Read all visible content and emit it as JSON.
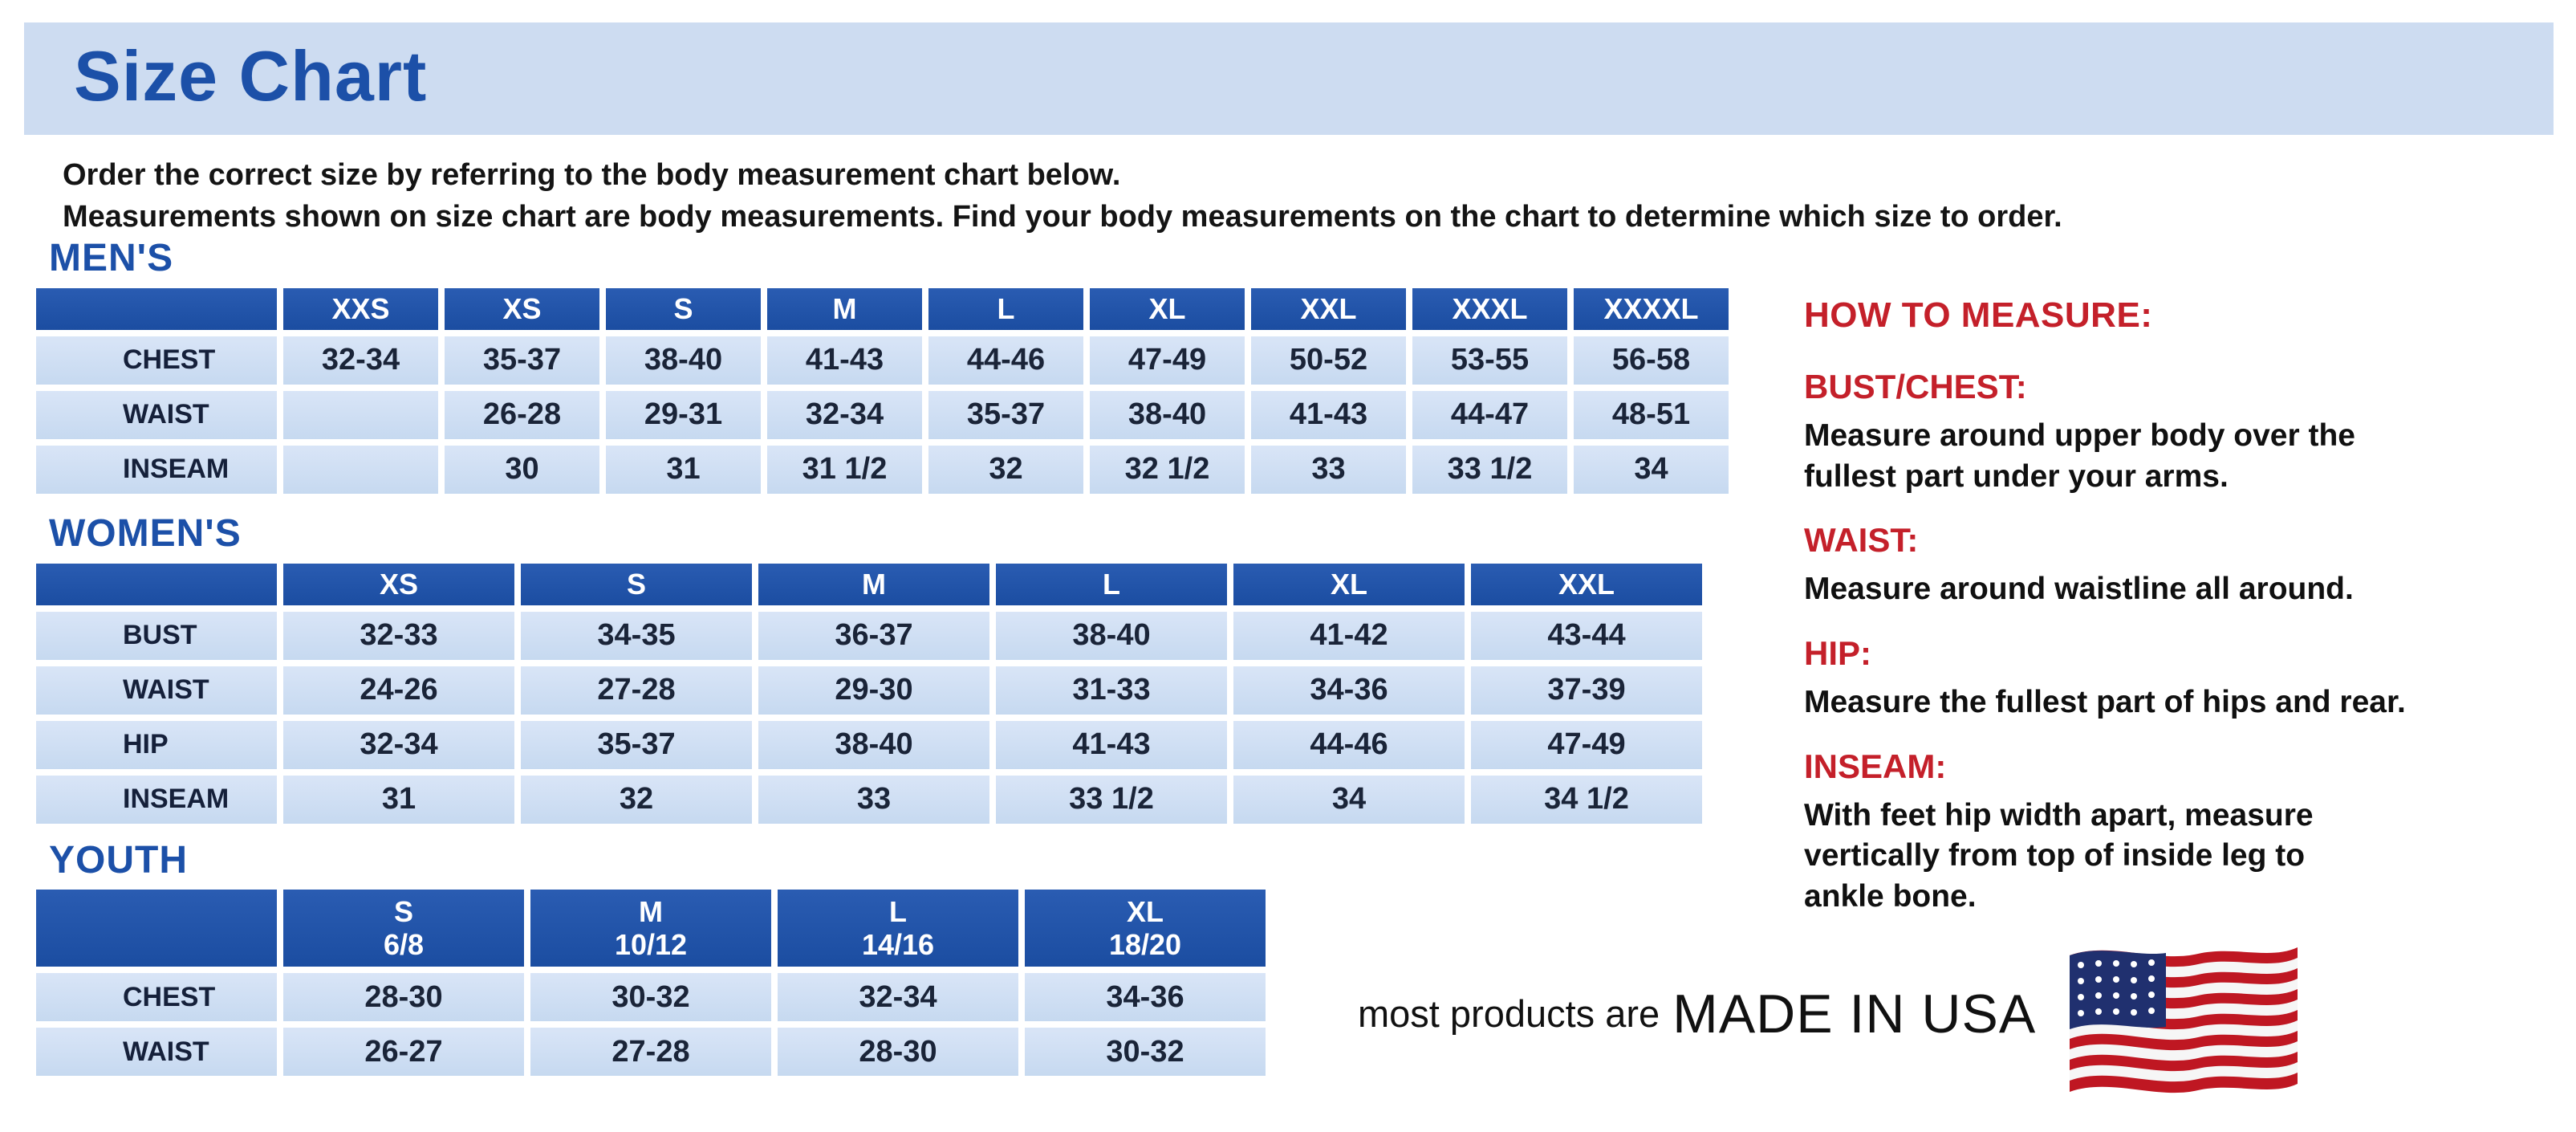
{
  "title": "Size Chart",
  "intro": {
    "line1": "Order the correct size by referring to the body measurement chart below.",
    "line2": "Measurements shown on size chart are body measurements.  Find your body measurements on the chart to determine which size to order."
  },
  "colors": {
    "title_band_blue": "#cddcf1",
    "heading_blue": "#1c50a8",
    "table_header_blue": "#1e51a8",
    "table_cell_blue": "#cdddf3",
    "accent_red": "#c4202a"
  },
  "tables": {
    "mens": {
      "section_label": "MEN'S",
      "headers": [
        "",
        "XXS",
        "XS",
        "S",
        "M",
        "L",
        "XL",
        "XXL",
        "XXXL",
        "XXXXL"
      ],
      "rows": [
        {
          "label": "CHEST",
          "values": [
            "32-34",
            "35-37",
            "38-40",
            "41-43",
            "44-46",
            "47-49",
            "50-52",
            "53-55",
            "56-58"
          ]
        },
        {
          "label": "WAIST",
          "values": [
            "",
            "26-28",
            "29-31",
            "32-34",
            "35-37",
            "38-40",
            "41-43",
            "44-47",
            "48-51"
          ]
        },
        {
          "label": "INSEAM",
          "values": [
            "",
            "30",
            "31",
            "31 1/2",
            "32",
            "32 1/2",
            "33",
            "33 1/2",
            "34"
          ]
        }
      ]
    },
    "womens": {
      "section_label": "WOMEN'S",
      "headers": [
        "",
        "XS",
        "S",
        "M",
        "L",
        "XL",
        "XXL"
      ],
      "rows": [
        {
          "label": "BUST",
          "values": [
            "32-33",
            "34-35",
            "36-37",
            "38-40",
            "41-42",
            "43-44"
          ]
        },
        {
          "label": "WAIST",
          "values": [
            "24-26",
            "27-28",
            "29-30",
            "31-33",
            "34-36",
            "37-39"
          ]
        },
        {
          "label": "HIP",
          "values": [
            "32-34",
            "35-37",
            "38-40",
            "41-43",
            "44-46",
            "47-49"
          ]
        },
        {
          "label": "INSEAM",
          "values": [
            "31",
            "32",
            "33",
            "33 1/2",
            "34",
            "34 1/2"
          ]
        }
      ]
    },
    "youth": {
      "section_label": "YOUTH",
      "headers": [
        "",
        "S\n6/8",
        "M\n10/12",
        "L\n14/16",
        "XL\n18/20"
      ],
      "rows": [
        {
          "label": "CHEST",
          "values": [
            "28-30",
            "30-32",
            "32-34",
            "34-36"
          ]
        },
        {
          "label": "WAIST",
          "values": [
            "26-27",
            "27-28",
            "28-30",
            "30-32"
          ]
        }
      ]
    }
  },
  "how_to_measure": {
    "title": "HOW TO MEASURE:",
    "items": [
      {
        "label": "BUST/CHEST:",
        "text": "Measure around upper body over the\nfullest part under your arms."
      },
      {
        "label": "WAIST:",
        "text": "Measure around waistline all around."
      },
      {
        "label": "HIP:",
        "text": "Measure the fullest part of hips and rear."
      },
      {
        "label": "INSEAM:",
        "text": "With feet hip width apart, measure\nvertically from top of inside leg to\nankle bone."
      }
    ]
  },
  "made_in_usa": {
    "prefix": "most products are",
    "emphasis": "MADE IN USA",
    "flag_icon": "us-flag-icon"
  }
}
